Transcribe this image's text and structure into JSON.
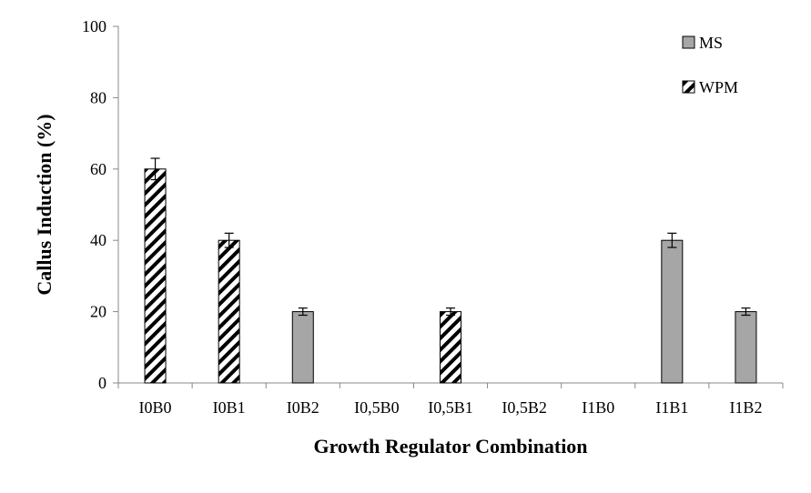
{
  "chart_data": {
    "type": "bar",
    "title": "",
    "xlabel": "Growth Regulator Combination",
    "ylabel": "Callus Induction (%)",
    "ylim": [
      0,
      100
    ],
    "yticks": [
      "0",
      "20",
      "40",
      "60",
      "80",
      "100"
    ],
    "grid": false,
    "legend_position": "top-right",
    "categories": [
      "I0B0",
      "I0B1",
      "I0B2",
      "I0,5B0",
      "I0,5B1",
      "I0,5B2",
      "I1B0",
      "I1B1",
      "I1B2"
    ],
    "series": [
      {
        "name": "MS",
        "fill": "solid-gray",
        "color": "#a6a6a6",
        "values": [
          0,
          0,
          20,
          0,
          0,
          0,
          0,
          40,
          20
        ],
        "error": [
          0,
          0,
          1,
          0,
          0,
          0,
          0,
          2,
          1
        ]
      },
      {
        "name": "WPM",
        "fill": "diagonal-hatch",
        "color": "#000000",
        "values": [
          60,
          40,
          0,
          0,
          20,
          0,
          0,
          0,
          0
        ],
        "error": [
          3,
          2,
          0,
          0,
          1,
          0,
          0,
          0,
          0
        ]
      }
    ]
  }
}
